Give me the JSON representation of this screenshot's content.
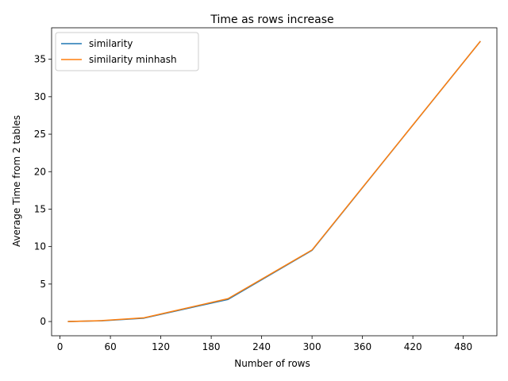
{
  "chart_data": {
    "type": "line",
    "title": "Time as rows increase",
    "xlabel": "Number of rows",
    "ylabel": "Average Time from 2 tables",
    "xlim": [
      -10,
      520
    ],
    "ylim": [
      -1.9,
      39.2
    ],
    "xticks": [
      0,
      60,
      120,
      180,
      240,
      300,
      360,
      420,
      480
    ],
    "yticks": [
      0,
      5,
      10,
      15,
      20,
      25,
      30,
      35
    ],
    "grid": false,
    "legend": "top-left",
    "series": [
      {
        "name": "similarity",
        "color": "#1f77b4",
        "x": [
          10,
          50,
          100,
          200,
          300,
          500
        ],
        "y": [
          0.0,
          0.1,
          0.45,
          2.95,
          9.5,
          37.35
        ]
      },
      {
        "name": "similarity minhash",
        "color": "#ff7f0e",
        "x": [
          10,
          50,
          100,
          200,
          300,
          500
        ],
        "y": [
          0.0,
          0.12,
          0.5,
          3.05,
          9.55,
          37.35
        ]
      }
    ]
  }
}
